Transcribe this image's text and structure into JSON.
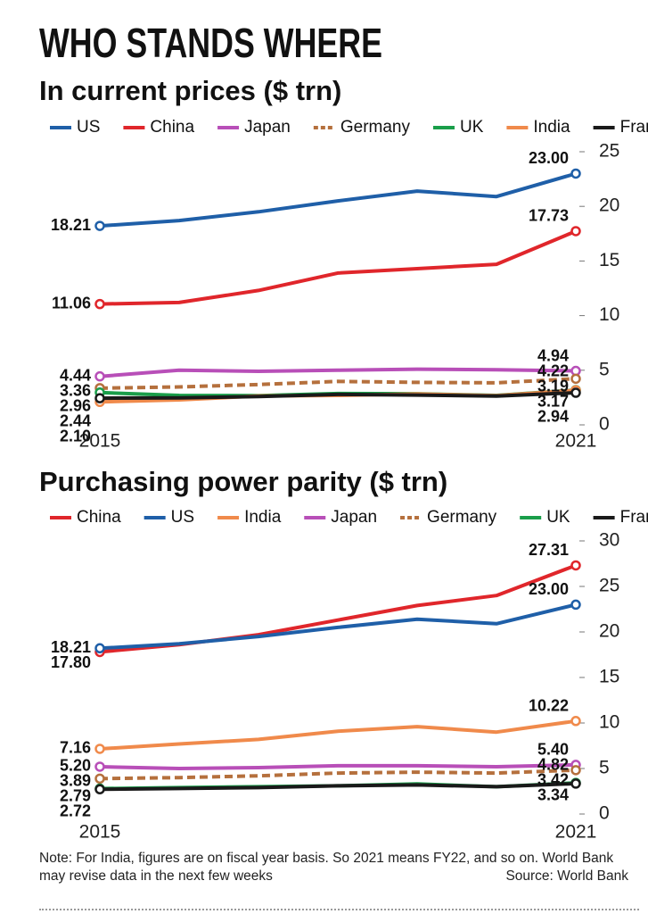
{
  "title": "WHO STANDS WHERE",
  "chart_data": [
    {
      "type": "line",
      "title": "In current prices ($ trn)",
      "categories": [
        "2015",
        null,
        null,
        null,
        null,
        null,
        "2021"
      ],
      "ylim": [
        0,
        25
      ],
      "yticks": [
        0,
        5,
        10,
        15,
        20,
        25
      ],
      "series": [
        {
          "name": "US",
          "color": "#1f5fa8",
          "values": [
            18.21,
            18.7,
            19.5,
            20.5,
            21.4,
            20.9,
            23.0
          ],
          "value_labels": [
            "18.21",
            null,
            null,
            null,
            null,
            null,
            "23.00"
          ]
        },
        {
          "name": "China",
          "color": "#e0262b",
          "values": [
            11.06,
            11.2,
            12.3,
            13.9,
            14.3,
            14.7,
            17.73
          ],
          "value_labels": [
            "11.06",
            null,
            null,
            null,
            null,
            null,
            "17.73"
          ]
        },
        {
          "name": "Japan",
          "color": "#b84fb8",
          "values": [
            4.44,
            5.0,
            4.9,
            5.0,
            5.1,
            5.05,
            4.94
          ],
          "value_labels": [
            "4.44",
            null,
            null,
            null,
            null,
            null,
            "4.94"
          ]
        },
        {
          "name": "Germany",
          "color": "#b5703d",
          "style": "dashed",
          "values": [
            3.36,
            3.47,
            3.69,
            3.98,
            3.89,
            3.85,
            4.22
          ],
          "value_labels": [
            "3.36",
            null,
            null,
            null,
            null,
            null,
            "4.22"
          ]
        },
        {
          "name": "UK",
          "color": "#1a9e4a",
          "values": [
            2.96,
            2.7,
            2.68,
            2.87,
            2.85,
            2.7,
            3.19
          ],
          "value_labels": [
            "2.96",
            null,
            null,
            null,
            null,
            null,
            "3.19"
          ]
        },
        {
          "name": "India",
          "color": "#f08a4b",
          "values": [
            2.1,
            2.29,
            2.65,
            2.7,
            2.83,
            2.67,
            3.17
          ],
          "value_labels": [
            "2.10",
            null,
            null,
            null,
            null,
            null,
            "3.17"
          ]
        },
        {
          "name": "France",
          "color": "#1a1a1a",
          "values": [
            2.44,
            2.47,
            2.59,
            2.79,
            2.73,
            2.64,
            2.94
          ],
          "value_labels": [
            "2.44",
            null,
            null,
            null,
            null,
            null,
            "2.94"
          ]
        }
      ]
    },
    {
      "type": "line",
      "title": "Purchasing power parity ($ trn)",
      "categories": [
        "2015",
        null,
        null,
        null,
        null,
        null,
        "2021"
      ],
      "ylim": [
        0,
        30
      ],
      "yticks": [
        0,
        5,
        10,
        15,
        20,
        25,
        30
      ],
      "series": [
        {
          "name": "China",
          "color": "#e0262b",
          "values": [
            17.8,
            18.6,
            19.7,
            21.3,
            22.9,
            24.0,
            27.31
          ],
          "value_labels": [
            "17.80",
            null,
            null,
            null,
            null,
            null,
            "27.31"
          ]
        },
        {
          "name": "US",
          "color": "#1f5fa8",
          "values": [
            18.21,
            18.7,
            19.5,
            20.5,
            21.4,
            20.9,
            23.0
          ],
          "value_labels": [
            "18.21",
            null,
            null,
            null,
            null,
            null,
            "23.00"
          ]
        },
        {
          "name": "India",
          "color": "#f08a4b",
          "values": [
            7.16,
            7.7,
            8.2,
            9.1,
            9.6,
            9.0,
            10.22
          ],
          "value_labels": [
            "7.16",
            null,
            null,
            null,
            null,
            null,
            "10.22"
          ]
        },
        {
          "name": "Japan",
          "color": "#b84fb8",
          "values": [
            5.2,
            5.0,
            5.1,
            5.3,
            5.3,
            5.2,
            5.4
          ],
          "value_labels": [
            "5.20",
            null,
            null,
            null,
            null,
            null,
            "5.40"
          ]
        },
        {
          "name": "Germany",
          "color": "#b5703d",
          "style": "dashed",
          "values": [
            3.89,
            4.0,
            4.2,
            4.5,
            4.6,
            4.5,
            4.82
          ],
          "value_labels": [
            "3.89",
            null,
            null,
            null,
            null,
            null,
            "4.82"
          ]
        },
        {
          "name": "UK",
          "color": "#1a9e4a",
          "values": [
            2.79,
            2.9,
            3.0,
            3.1,
            3.3,
            3.0,
            3.42
          ],
          "value_labels": [
            "2.79",
            null,
            null,
            null,
            null,
            null,
            "3.42"
          ]
        },
        {
          "name": "France",
          "color": "#1a1a1a",
          "values": [
            2.72,
            2.8,
            2.9,
            3.1,
            3.2,
            3.0,
            3.34
          ],
          "value_labels": [
            "2.72",
            null,
            null,
            null,
            null,
            null,
            "3.34"
          ]
        }
      ]
    }
  ],
  "note": "Note: For India, figures are on fiscal year basis. So 2021 means FY22, and so on. World Bank may revise data in the next few weeks",
  "source": "Source: World Bank"
}
